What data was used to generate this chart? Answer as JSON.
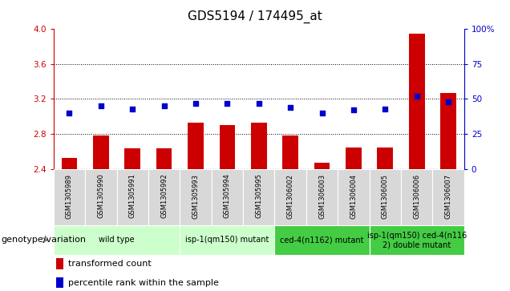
{
  "title": "GDS5194 / 174495_at",
  "samples": [
    "GSM1305989",
    "GSM1305990",
    "GSM1305991",
    "GSM1305992",
    "GSM1305993",
    "GSM1305994",
    "GSM1305995",
    "GSM1306002",
    "GSM1306003",
    "GSM1306004",
    "GSM1306005",
    "GSM1306006",
    "GSM1306007"
  ],
  "transformed_count": [
    2.52,
    2.78,
    2.63,
    2.63,
    2.93,
    2.9,
    2.93,
    2.78,
    2.47,
    2.64,
    2.64,
    3.95,
    3.27
  ],
  "percentile_rank": [
    40,
    45,
    43,
    45,
    47,
    47,
    47,
    44,
    40,
    42,
    43,
    52,
    48
  ],
  "ylim_left": [
    2.4,
    4.0
  ],
  "ylim_right": [
    0,
    100
  ],
  "yticks_left": [
    2.4,
    2.8,
    3.2,
    3.6,
    4.0
  ],
  "yticks_right": [
    0,
    25,
    50,
    75,
    100
  ],
  "hlines": [
    2.8,
    3.2,
    3.6
  ],
  "bar_color": "#cc0000",
  "dot_color": "#0000cc",
  "groups": [
    {
      "label": "wild type",
      "indices": [
        0,
        1,
        2,
        3
      ],
      "color": "#ccffcc"
    },
    {
      "label": "isp-1(qm150) mutant",
      "indices": [
        4,
        5,
        6
      ],
      "color": "#ccffcc"
    },
    {
      "label": "ced-4(n1162) mutant",
      "indices": [
        7,
        8,
        9
      ],
      "color": "#44cc44"
    },
    {
      "label": "isp-1(qm150) ced-4(n116\n2) double mutant",
      "indices": [
        10,
        11,
        12
      ],
      "color": "#44cc44"
    }
  ],
  "legend_bar_label": "transformed count",
  "legend_dot_label": "percentile rank within the sample",
  "genotype_label": "genotype/variation",
  "plot_bg": "#ffffff",
  "left_axis_color": "#cc0000",
  "right_axis_color": "#0000cc",
  "sample_box_color": "#d8d8d8",
  "title_fontsize": 11,
  "tick_fontsize": 7.5,
  "sample_fontsize": 6,
  "group_fontsize": 7,
  "legend_fontsize": 8,
  "genotype_fontsize": 8
}
